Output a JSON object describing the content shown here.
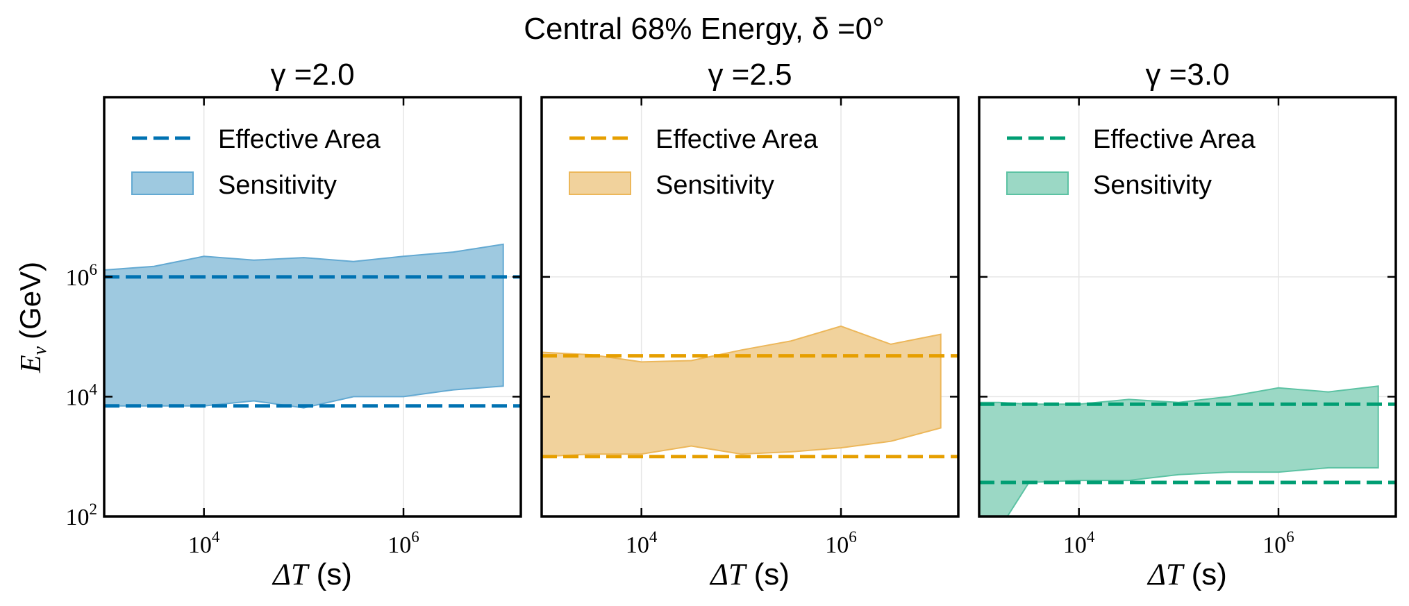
{
  "suptitle": "Central 68% Energy, δ =0°",
  "y_label": {
    "symbol": "E",
    "sub": "ν",
    "unit": "(GeV)"
  },
  "x_label": {
    "symbol": "ΔT",
    "unit": "(s)"
  },
  "legend": {
    "line_label": "Effective Area",
    "band_label": "Sensitivity"
  },
  "colors": {
    "gamma_2_0": {
      "line": "#0072b2",
      "fill": "#9ec9e0",
      "edge": "#63a9d2"
    },
    "gamma_2_5": {
      "line": "#e69f00",
      "fill": "#f1d29c",
      "edge": "#ecb75a"
    },
    "gamma_3_0": {
      "line": "#009e73",
      "fill": "#9bd8c5",
      "edge": "#5cc2a3"
    }
  },
  "chart_data": [
    {
      "type": "area",
      "title": "γ =2.0",
      "xscale": "log",
      "yscale": "log",
      "xlim": [
        1000,
        15000000
      ],
      "ylim": [
        100,
        1000000000
      ],
      "x_ticks": [
        10000,
        1000000
      ],
      "y_ticks": [
        100,
        10000,
        1000000
      ],
      "legend_position": "top-left",
      "effective_area": [
        7000,
        1000000
      ],
      "sensitivity": {
        "x": [
          1000,
          3160,
          10000,
          31600,
          100000,
          316000,
          1000000,
          3160000,
          10000000
        ],
        "lower": [
          7000,
          7000,
          7000,
          8500,
          6500,
          10000,
          10000,
          13000,
          15000
        ],
        "upper": [
          1300000,
          1500000,
          2200000,
          1900000,
          2100000,
          1800000,
          2200000,
          2600000,
          3500000
        ]
      }
    },
    {
      "type": "area",
      "title": "γ =2.5",
      "xscale": "log",
      "yscale": "log",
      "xlim": [
        1000,
        15000000
      ],
      "ylim": [
        100,
        1000000000
      ],
      "x_ticks": [
        10000,
        1000000
      ],
      "y_ticks": [
        100,
        10000,
        1000000
      ],
      "legend_position": "top-left",
      "effective_area": [
        1000,
        48000
      ],
      "sensitivity": {
        "x": [
          1000,
          3160,
          10000,
          31600,
          100000,
          316000,
          1000000,
          3160000,
          10000000
        ],
        "lower": [
          1000,
          1100,
          1100,
          1500,
          1100,
          1200,
          1400,
          1800,
          3000
        ],
        "upper": [
          55000,
          50000,
          38000,
          40000,
          60000,
          85000,
          150000,
          75000,
          110000
        ]
      }
    },
    {
      "type": "area",
      "title": "γ =3.0",
      "xscale": "log",
      "yscale": "log",
      "xlim": [
        1000,
        15000000
      ],
      "ylim": [
        100,
        1000000000
      ],
      "x_ticks": [
        10000,
        1000000
      ],
      "y_ticks": [
        100,
        10000,
        1000000
      ],
      "legend_position": "top-left",
      "effective_area": [
        370,
        7500
      ],
      "sensitivity": {
        "x": [
          1000,
          1580,
          3160,
          10000,
          31600,
          100000,
          316000,
          1000000,
          3160000,
          10000000
        ],
        "lower": [
          100,
          60,
          370,
          400,
          400,
          500,
          550,
          550,
          650,
          650
        ],
        "upper": [
          8000,
          8000,
          7500,
          7500,
          9000,
          8000,
          10000,
          14000,
          12000,
          15000
        ]
      }
    }
  ]
}
